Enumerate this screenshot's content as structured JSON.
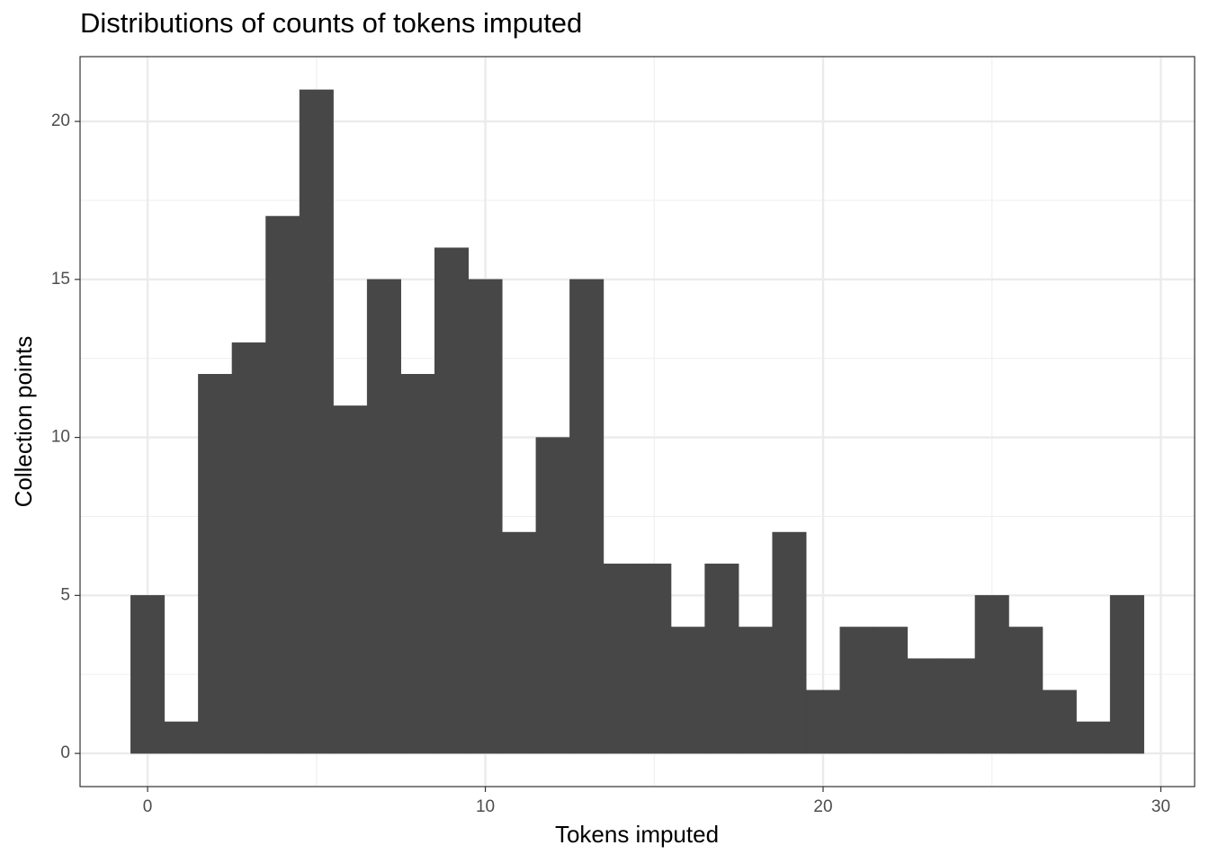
{
  "chart_data": {
    "type": "histogram",
    "title": "Distributions of counts of tokens imputed",
    "x_label": "Tokens imputed",
    "y_label": "Collection points",
    "bins": [
      -0.5,
      0.5,
      1.5,
      2.5,
      3.5,
      4.5,
      5.5,
      6.5,
      7.5,
      8.5,
      9.5,
      10.5,
      11.5,
      12.5,
      13.5,
      14.5,
      15.5,
      16.5,
      17.5,
      18.5,
      19.5,
      20.5,
      21.5,
      22.5,
      23.5,
      24.5,
      25.5,
      26.5,
      27.5,
      28.5,
      29.5
    ],
    "values": [
      5,
      1,
      12,
      13,
      17,
      21,
      11,
      15,
      12,
      16,
      15,
      7,
      10,
      15,
      6,
      6,
      4,
      6,
      4,
      7,
      2,
      4,
      4,
      3,
      3,
      5,
      4,
      2,
      1,
      5
    ],
    "color": "#474747",
    "xlim": [
      -2,
      31
    ],
    "ylim": [
      -1.05,
      22.05
    ],
    "xticks": [
      0,
      10,
      20,
      30
    ],
    "yticks": [
      0,
      5,
      10,
      15,
      20
    ],
    "grid": true
  }
}
